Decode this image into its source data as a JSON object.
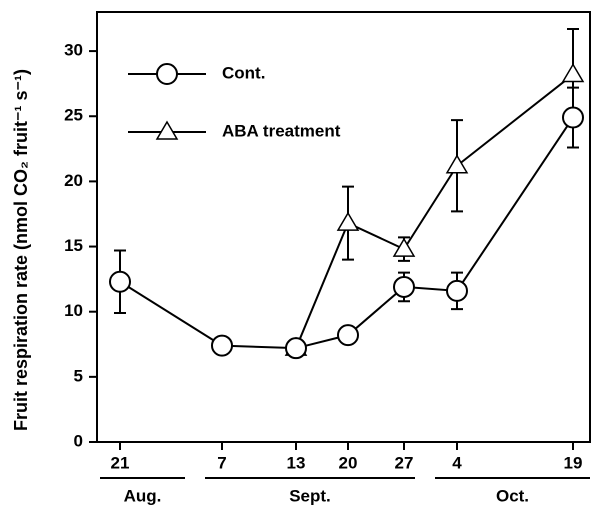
{
  "chart_data": {
    "type": "line",
    "y_label": "Fruit respiration rate (nmol CO₂ fruit⁻¹ s⁻¹)",
    "categories": [
      "21",
      "7",
      "13",
      "20",
      "27",
      "4",
      "19"
    ],
    "month_labels": [
      "Aug.",
      "Sept.",
      "Oct."
    ],
    "series": [
      {
        "name": "ABA treatment",
        "marker": "triangle",
        "color": "#000000",
        "values": [
          null,
          null,
          7.2,
          16.8,
          14.8,
          21.2,
          28.2
        ],
        "errors": [
          null,
          null,
          null,
          2.8,
          0.9,
          3.5,
          3.5
        ]
      },
      {
        "name": "Cont.",
        "marker": "circle",
        "color": "#000000",
        "values": [
          12.3,
          7.4,
          7.2,
          8.2,
          11.9,
          11.6,
          24.9
        ],
        "errors": [
          2.4,
          null,
          null,
          null,
          1.1,
          1.4,
          2.3
        ]
      }
    ],
    "ylim": [
      0,
      33
    ],
    "yticks": [
      0,
      5,
      10,
      15,
      20,
      25,
      30
    ],
    "grid": false
  }
}
